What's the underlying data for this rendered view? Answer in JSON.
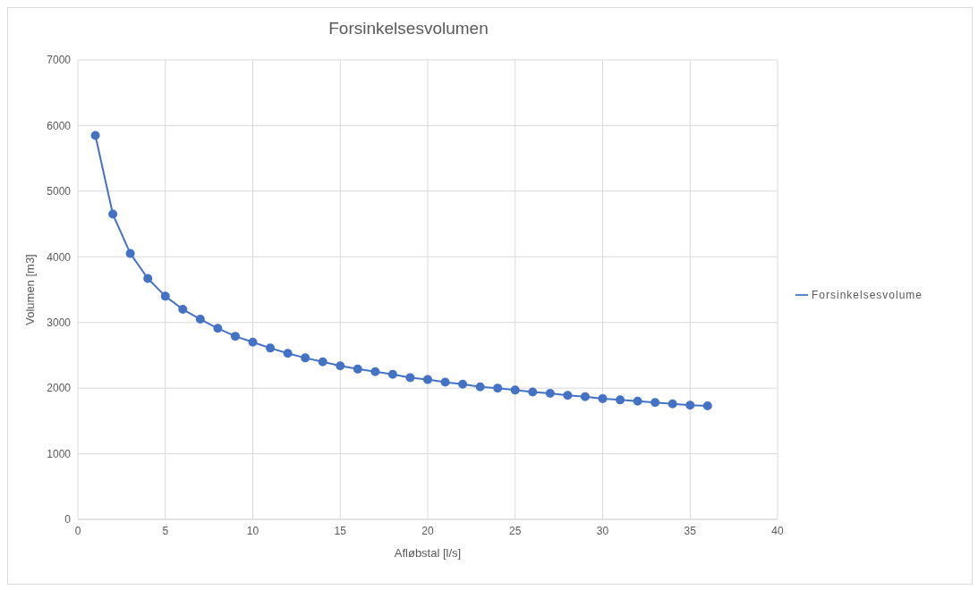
{
  "chart_data": {
    "type": "line",
    "title": "Forsinkelsesvolumen",
    "xlabel": "Afløbstal [l/s]",
    "ylabel": "Volumen [m3]",
    "x": [
      1,
      2,
      3,
      4,
      5,
      6,
      7,
      8,
      9,
      10,
      11,
      12,
      13,
      14,
      15,
      16,
      17,
      18,
      19,
      20,
      21,
      22,
      23,
      24,
      25,
      26,
      27,
      28,
      29,
      30,
      31,
      32,
      33,
      34,
      35,
      36
    ],
    "series": [
      {
        "name": "Forsinkelsesvolume",
        "color": "#4472c4",
        "values": [
          5850,
          4650,
          4050,
          3670,
          3400,
          3200,
          3050,
          2910,
          2790,
          2700,
          2610,
          2530,
          2460,
          2400,
          2340,
          2290,
          2250,
          2210,
          2160,
          2130,
          2090,
          2060,
          2020,
          2000,
          1970,
          1940,
          1920,
          1890,
          1870,
          1840,
          1820,
          1800,
          1780,
          1760,
          1740,
          1730
        ]
      }
    ],
    "xlim": [
      0,
      40
    ],
    "xticks": [
      0,
      5,
      10,
      15,
      20,
      25,
      30,
      35,
      40
    ],
    "ylim": [
      0,
      7000
    ],
    "yticks": [
      0,
      1000,
      2000,
      3000,
      4000,
      5000,
      6000,
      7000
    ],
    "grid": true,
    "legend": "right",
    "marker": "circle",
    "line_style": "solid"
  }
}
